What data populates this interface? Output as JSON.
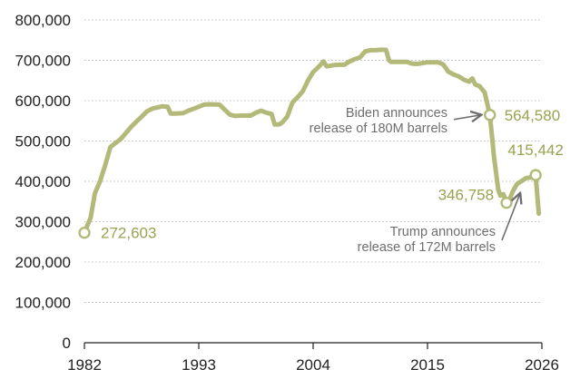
{
  "chart_data": {
    "type": "line",
    "title": "",
    "xlabel": "",
    "ylabel": "",
    "xlim": [
      1982,
      2026
    ],
    "ylim": [
      0,
      800000
    ],
    "grid": true,
    "x_ticks": [
      "1982",
      "1993",
      "2004",
      "2015",
      "2026"
    ],
    "y_ticks": [
      "0",
      "100,000",
      "200,000",
      "300,000",
      "400,000",
      "500,000",
      "600,000",
      "700,000",
      "800,000"
    ],
    "colors": {
      "line": "#b3b979",
      "label": "#9aa251",
      "annotation": "#6e6e6e",
      "grid": "#bdbdbd"
    },
    "series": [
      {
        "x": [
          1982.0,
          1982.6,
          1983.0,
          1983.5,
          1984.0,
          1984.5,
          1985.0,
          1985.5,
          1986.0,
          1986.5,
          1987.0,
          1987.5,
          1988.0,
          1988.5,
          1989.0,
          1989.5,
          1990.0,
          1990.3,
          1990.8,
          1991.5,
          1992.0,
          1992.5,
          1993.0,
          1993.5,
          1994.0,
          1995.0,
          1996.0,
          1996.5,
          1997.0,
          1998.0,
          1998.5,
          1999.0,
          1999.5,
          2000.0,
          2000.3,
          2000.7,
          2001.0,
          2001.5,
          2002.0,
          2002.5,
          2003.0,
          2003.5,
          2004.0,
          2004.5,
          2005.0,
          2005.3,
          2006.0,
          2006.5,
          2007.0,
          2007.5,
          2008.0,
          2008.5,
          2009.0,
          2009.5,
          2010.0,
          2010.5,
          2011.0,
          2011.3,
          2011.5,
          2012.0,
          2013.0,
          2013.5,
          2014.0,
          2015.0,
          2016.0,
          2016.5,
          2017.0,
          2017.5,
          2018.0,
          2018.5,
          2019.0,
          2019.3,
          2019.6,
          2020.0,
          2020.5,
          2021.0,
          2021.4,
          2021.8,
          2022.0,
          2022.3,
          2022.6,
          2022.9,
          2023.2,
          2023.6,
          2024.0,
          2024.5,
          2025.0,
          2025.4,
          2025.7
        ],
        "y": [
          272603,
          310000,
          370000,
          400000,
          440000,
          485000,
          495000,
          505000,
          520000,
          535000,
          548000,
          560000,
          573000,
          580000,
          583000,
          586000,
          585000,
          568000,
          568000,
          569000,
          575000,
          580000,
          585000,
          590000,
          591000,
          590000,
          565000,
          562000,
          563000,
          563000,
          570000,
          575000,
          570000,
          567000,
          541000,
          541000,
          545000,
          560000,
          595000,
          608000,
          623000,
          650000,
          671000,
          683000,
          697000,
          685000,
          688000,
          689000,
          689000,
          697000,
          703000,
          707000,
          722000,
          725000,
          725000,
          726000,
          726000,
          700000,
          696000,
          696000,
          696000,
          692000,
          691000,
          695000,
          695000,
          690000,
          672000,
          665000,
          660000,
          652000,
          647000,
          655000,
          640000,
          636000,
          620000,
          564580,
          460000,
          380000,
          365000,
          368000,
          346758,
          355000,
          375000,
          393000,
          400000,
          408000,
          410000,
          415442,
          320000
        ]
      }
    ],
    "annotations": [
      {
        "x": 2021.0,
        "y": 564580,
        "value_label": "564,580",
        "lines": [
          "Biden announces",
          "release of 180M barrels"
        ]
      },
      {
        "x": 2022.6,
        "y": 346758,
        "value_label": "346,758",
        "lines": [
          "Trump announces",
          "release of 172M barrels"
        ]
      },
      {
        "x": 2025.4,
        "y": 415442,
        "value_label": "415,442"
      },
      {
        "x": 1982.0,
        "y": 272603,
        "value_label": "272,603"
      }
    ]
  }
}
